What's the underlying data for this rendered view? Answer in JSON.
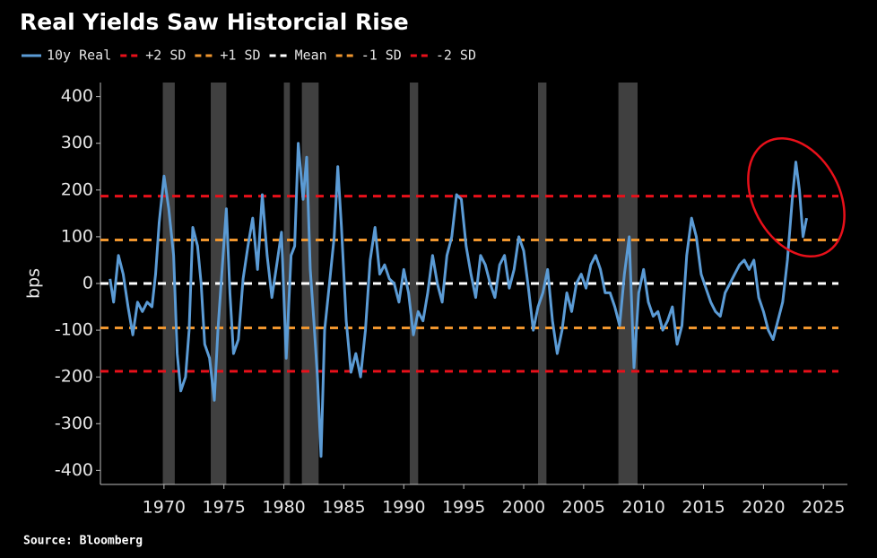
{
  "chart_data": {
    "type": "line",
    "title": "Real Yields Saw Historcial Rise",
    "y_label": "bps",
    "source": "Source: Bloomberg",
    "xlim": [
      1964.7,
      2027
    ],
    "ylim": [
      -430,
      430
    ],
    "xticks": [
      1970,
      1975,
      1980,
      1985,
      1990,
      1995,
      2000,
      2005,
      2010,
      2015,
      2020,
      2025
    ],
    "yticks": [
      -400,
      -300,
      -200,
      -100,
      0,
      100,
      200,
      300,
      400
    ],
    "recessions": [
      [
        1969.9,
        1970.9
      ],
      [
        1973.9,
        1975.2
      ],
      [
        1980.0,
        1980.5
      ],
      [
        1981.5,
        1982.9
      ],
      [
        1990.5,
        1991.2
      ],
      [
        2001.2,
        2001.9
      ],
      [
        2007.9,
        2009.5
      ]
    ],
    "recession_color": "#404040",
    "reference_lines": [
      {
        "name": "+2 SD",
        "value": 187,
        "color": "#e8101a"
      },
      {
        "name": "+1 SD",
        "value": 93,
        "color": "#f0962e"
      },
      {
        "name": "Mean",
        "value": 0,
        "color": "#ffffff"
      },
      {
        "name": "-1 SD",
        "value": -95,
        "color": "#f0962e"
      },
      {
        "name": "-2 SD",
        "value": -188,
        "color": "#e8101a"
      }
    ],
    "x": [
      1965.5,
      1965.8,
      1966.2,
      1966.6,
      1967,
      1967.4,
      1967.8,
      1968.2,
      1968.6,
      1969,
      1969.3,
      1969.6,
      1970,
      1970.4,
      1970.8,
      1971.1,
      1971.4,
      1971.8,
      1972.1,
      1972.4,
      1972.8,
      1973.1,
      1973.4,
      1973.8,
      1974.2,
      1974.5,
      1974.9,
      1975.2,
      1975.5,
      1975.8,
      1976.2,
      1976.6,
      1977,
      1977.4,
      1977.8,
      1978.2,
      1978.6,
      1979,
      1979.4,
      1979.8,
      1980.2,
      1980.6,
      1980.9,
      1981.2,
      1981.6,
      1981.9,
      1982.2,
      1982.5,
      1982.8,
      1983.1,
      1983.4,
      1983.8,
      1984.2,
      1984.5,
      1984.8,
      1985.2,
      1985.6,
      1986,
      1986.4,
      1986.8,
      1987.2,
      1987.6,
      1988,
      1988.4,
      1988.8,
      1989.2,
      1989.6,
      1990,
      1990.4,
      1990.8,
      1991.2,
      1991.6,
      1992,
      1992.4,
      1992.8,
      1993.2,
      1993.6,
      1994,
      1994.4,
      1994.8,
      1995.2,
      1995.6,
      1996,
      1996.4,
      1996.8,
      1997.2,
      1997.6,
      1998,
      1998.4,
      1998.8,
      1999.2,
      1999.6,
      2000,
      2000.4,
      2000.8,
      2001.2,
      2001.6,
      2002,
      2002.4,
      2002.8,
      2003.2,
      2003.6,
      2004,
      2004.4,
      2004.8,
      2005.2,
      2005.6,
      2006,
      2006.4,
      2006.8,
      2007.2,
      2007.6,
      2008,
      2008.4,
      2008.8,
      2009.2,
      2009.6,
      2010,
      2010.4,
      2010.8,
      2011.2,
      2011.6,
      2012,
      2012.4,
      2012.8,
      2013.2,
      2013.6,
      2014,
      2014.4,
      2014.8,
      2015.2,
      2015.6,
      2016,
      2016.4,
      2016.8,
      2017.2,
      2017.6,
      2018,
      2018.4,
      2018.8,
      2019.2,
      2019.6,
      2020,
      2020.4,
      2020.8,
      2021.2,
      2021.6,
      2022,
      2022.4,
      2022.7,
      2023,
      2023.3,
      2023.6
    ],
    "series": [
      {
        "name": "10y Real",
        "color": "#5b9bd5",
        "values": [
          10,
          -40,
          60,
          20,
          -50,
          -110,
          -40,
          -60,
          -40,
          -50,
          20,
          130,
          230,
          160,
          60,
          -150,
          -230,
          -200,
          -100,
          120,
          80,
          0,
          -130,
          -160,
          -250,
          -100,
          50,
          160,
          -20,
          -150,
          -120,
          10,
          80,
          140,
          30,
          190,
          60,
          -30,
          40,
          110,
          -160,
          60,
          80,
          300,
          180,
          270,
          30,
          -80,
          -200,
          -370,
          -100,
          0,
          100,
          250,
          120,
          -80,
          -190,
          -150,
          -200,
          -100,
          50,
          120,
          20,
          40,
          10,
          0,
          -40,
          30,
          -20,
          -110,
          -60,
          -80,
          -20,
          60,
          0,
          -40,
          60,
          100,
          190,
          180,
          80,
          20,
          -30,
          60,
          40,
          0,
          -30,
          40,
          60,
          -10,
          30,
          100,
          70,
          -10,
          -100,
          -50,
          -20,
          30,
          -80,
          -150,
          -100,
          -20,
          -60,
          0,
          20,
          -10,
          40,
          60,
          30,
          -20,
          -20,
          -50,
          -90,
          20,
          100,
          -180,
          -20,
          30,
          -40,
          -70,
          -60,
          -100,
          -80,
          -50,
          -130,
          -90,
          60,
          140,
          100,
          20,
          -10,
          -40,
          -60,
          -70,
          -20,
          0,
          20,
          40,
          50,
          30,
          50,
          -30,
          -60,
          -100,
          -120,
          -80,
          -40,
          50,
          180,
          260,
          200,
          100,
          140
        ]
      }
    ]
  }
}
